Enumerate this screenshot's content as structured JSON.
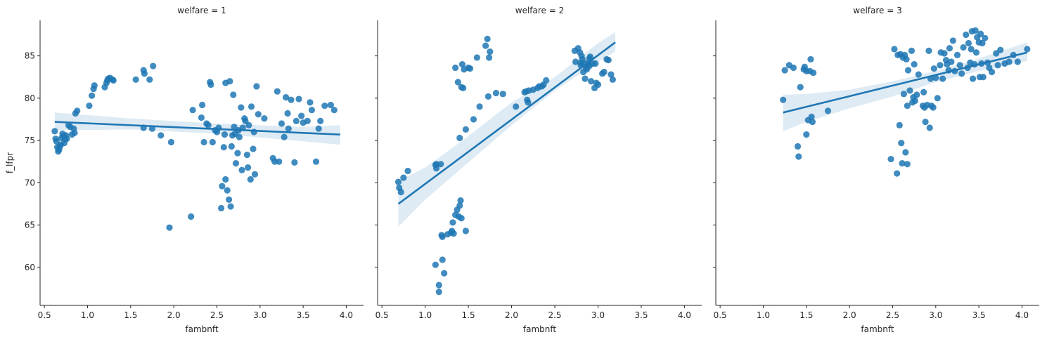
{
  "chart_data": [
    {
      "type": "scatter",
      "title": "welfare = 1",
      "xlabel": "fambnft",
      "ylabel": "f_lfpr",
      "xlim": [
        0.45,
        4.2
      ],
      "ylim": [
        55.5,
        89.2
      ],
      "xticks": [
        "0.5",
        "1.0",
        "1.5",
        "2.0",
        "2.5",
        "3.0",
        "3.5",
        "4.0"
      ],
      "yticks": [
        "60",
        "65",
        "70",
        "75",
        "80",
        "85"
      ],
      "grid": false,
      "color": "#1f77b4",
      "regression": {
        "x": [
          0.62,
          3.93
        ],
        "y": [
          77.2,
          75.7
        ]
      },
      "ci_band": {
        "x": [
          0.62,
          1.5,
          2.5,
          3.5,
          3.93
        ],
        "lower": [
          76.2,
          76.3,
          75.8,
          74.9,
          74.5
        ],
        "upper": [
          78.3,
          77.6,
          77.0,
          76.6,
          76.8
        ]
      },
      "points": [
        [
          0.62,
          76.1
        ],
        [
          0.63,
          75.2
        ],
        [
          0.64,
          74.9
        ],
        [
          0.65,
          74.2
        ],
        [
          0.66,
          73.7
        ],
        [
          0.67,
          73.9
        ],
        [
          0.68,
          74.3
        ],
        [
          0.69,
          74.5
        ],
        [
          0.7,
          75.3
        ],
        [
          0.71,
          75.8
        ],
        [
          0.72,
          75.5
        ],
        [
          0.73,
          74.7
        ],
        [
          0.74,
          75.1
        ],
        [
          0.75,
          75.6
        ],
        [
          0.76,
          75.2
        ],
        [
          0.78,
          76.8
        ],
        [
          0.8,
          76.6
        ],
        [
          0.82,
          75.7
        ],
        [
          0.84,
          76.4
        ],
        [
          0.85,
          75.9
        ],
        [
          0.86,
          78.2
        ],
        [
          0.88,
          78.5
        ],
        [
          1.02,
          79.1
        ],
        [
          1.05,
          80.3
        ],
        [
          1.07,
          81.1
        ],
        [
          1.08,
          81.5
        ],
        [
          1.2,
          81.3
        ],
        [
          1.22,
          81.8
        ],
        [
          1.23,
          82.1
        ],
        [
          1.24,
          82.3
        ],
        [
          1.26,
          82.4
        ],
        [
          1.29,
          82.2
        ],
        [
          1.3,
          82.1
        ],
        [
          1.56,
          82.2
        ],
        [
          1.65,
          83.3
        ],
        [
          1.66,
          82.9
        ],
        [
          1.72,
          82.2
        ],
        [
          1.76,
          83.8
        ],
        [
          1.65,
          76.5
        ],
        [
          1.75,
          76.4
        ],
        [
          1.85,
          75.6
        ],
        [
          1.95,
          64.7
        ],
        [
          1.97,
          74.8
        ],
        [
          2.2,
          66.0
        ],
        [
          2.22,
          78.6
        ],
        [
          2.32,
          77.7
        ],
        [
          2.33,
          79.2
        ],
        [
          2.35,
          74.8
        ],
        [
          2.38,
          77.0
        ],
        [
          2.4,
          76.8
        ],
        [
          2.42,
          81.9
        ],
        [
          2.43,
          81.6
        ],
        [
          2.45,
          74.8
        ],
        [
          2.48,
          76.2
        ],
        [
          2.5,
          76.0
        ],
        [
          2.52,
          76.5
        ],
        [
          2.55,
          67.0
        ],
        [
          2.56,
          69.6
        ],
        [
          2.58,
          74.2
        ],
        [
          2.59,
          75.7
        ],
        [
          2.6,
          70.4
        ],
        [
          2.6,
          81.8
        ],
        [
          2.62,
          69.1
        ],
        [
          2.64,
          68.0
        ],
        [
          2.65,
          82.0
        ],
        [
          2.66,
          67.2
        ],
        [
          2.67,
          74.3
        ],
        [
          2.68,
          75.6
        ],
        [
          2.69,
          80.4
        ],
        [
          2.7,
          76.6
        ],
        [
          2.71,
          75.8
        ],
        [
          2.72,
          72.3
        ],
        [
          2.74,
          73.5
        ],
        [
          2.75,
          76.2
        ],
        [
          2.76,
          75.4
        ],
        [
          2.78,
          78.9
        ],
        [
          2.79,
          71.5
        ],
        [
          2.8,
          76.5
        ],
        [
          2.82,
          77.6
        ],
        [
          2.83,
          77.3
        ],
        [
          2.85,
          73.3
        ],
        [
          2.86,
          71.8
        ],
        [
          2.87,
          76.8
        ],
        [
          2.89,
          70.4
        ],
        [
          2.9,
          79.0
        ],
        [
          2.92,
          74.0
        ],
        [
          2.93,
          76.0
        ],
        [
          2.94,
          71.0
        ],
        [
          2.96,
          81.4
        ],
        [
          2.98,
          78.1
        ],
        [
          3.05,
          77.6
        ],
        [
          3.15,
          72.9
        ],
        [
          3.17,
          72.5
        ],
        [
          3.2,
          80.8
        ],
        [
          3.22,
          72.5
        ],
        [
          3.25,
          77.0
        ],
        [
          3.28,
          75.4
        ],
        [
          3.3,
          80.1
        ],
        [
          3.32,
          78.2
        ],
        [
          3.33,
          76.4
        ],
        [
          3.36,
          79.8
        ],
        [
          3.4,
          72.4
        ],
        [
          3.42,
          77.3
        ],
        [
          3.45,
          79.9
        ],
        [
          3.48,
          77.9
        ],
        [
          3.5,
          77.1
        ],
        [
          3.55,
          77.3
        ],
        [
          3.58,
          79.5
        ],
        [
          3.6,
          78.6
        ],
        [
          3.65,
          72.5
        ],
        [
          3.68,
          76.4
        ],
        [
          3.7,
          77.3
        ],
        [
          3.75,
          79.1
        ],
        [
          3.82,
          79.2
        ],
        [
          3.86,
          78.6
        ]
      ]
    },
    {
      "type": "scatter",
      "title": "welfare = 2",
      "xlabel": "fambnft",
      "ylabel": "",
      "xlim": [
        0.45,
        4.2
      ],
      "ylim": [
        55.5,
        89.2
      ],
      "xticks": [
        "0.5",
        "1.0",
        "1.5",
        "2.0",
        "2.5",
        "3.0",
        "3.5",
        "4.0"
      ],
      "yticks": [
        "60",
        "65",
        "70",
        "75",
        "80",
        "85"
      ],
      "grid": false,
      "color": "#1f77b4",
      "regression": {
        "x": [
          0.69,
          3.2
        ],
        "y": [
          67.5,
          86.6
        ]
      },
      "ci_band": {
        "x": [
          0.69,
          1.0,
          1.5,
          2.0,
          2.5,
          3.0,
          3.2
        ],
        "lower": [
          64.8,
          68.0,
          72.4,
          76.8,
          80.9,
          84.3,
          85.5
        ],
        "upper": [
          70.2,
          71.8,
          75.5,
          79.5,
          82.5,
          86.5,
          87.8
        ]
      },
      "points": [
        [
          0.69,
          70.1
        ],
        [
          0.7,
          69.4
        ],
        [
          0.72,
          68.9
        ],
        [
          0.75,
          70.6
        ],
        [
          0.8,
          71.4
        ],
        [
          1.12,
          72.1
        ],
        [
          1.13,
          72.2
        ],
        [
          1.13,
          71.7
        ],
        [
          1.18,
          72.2
        ],
        [
          1.12,
          60.3
        ],
        [
          1.16,
          57.9
        ],
        [
          1.16,
          57.1
        ],
        [
          1.19,
          63.8
        ],
        [
          1.2,
          63.6
        ],
        [
          1.2,
          60.9
        ],
        [
          1.22,
          59.3
        ],
        [
          1.26,
          63.9
        ],
        [
          1.3,
          64.1
        ],
        [
          1.31,
          64.3
        ],
        [
          1.32,
          65.3
        ],
        [
          1.33,
          64.0
        ],
        [
          1.35,
          66.2
        ],
        [
          1.37,
          66.8
        ],
        [
          1.39,
          66.0
        ],
        [
          1.4,
          67.3
        ],
        [
          1.41,
          67.9
        ],
        [
          1.42,
          65.8
        ],
        [
          1.47,
          64.3
        ],
        [
          1.35,
          83.6
        ],
        [
          1.38,
          81.9
        ],
        [
          1.4,
          75.3
        ],
        [
          1.42,
          81.3
        ],
        [
          1.43,
          84.0
        ],
        [
          1.44,
          81.2
        ],
        [
          1.45,
          83.4
        ],
        [
          1.47,
          76.3
        ],
        [
          1.5,
          83.6
        ],
        [
          1.52,
          83.5
        ],
        [
          1.56,
          77.5
        ],
        [
          1.6,
          84.8
        ],
        [
          1.63,
          79.0
        ],
        [
          1.7,
          86.2
        ],
        [
          1.72,
          87.0
        ],
        [
          1.73,
          80.2
        ],
        [
          1.74,
          84.8
        ],
        [
          1.75,
          85.5
        ],
        [
          1.82,
          80.6
        ],
        [
          1.9,
          80.5
        ],
        [
          2.05,
          79.0
        ],
        [
          2.15,
          80.7
        ],
        [
          2.17,
          80.8
        ],
        [
          2.18,
          79.8
        ],
        [
          2.19,
          79.5
        ],
        [
          2.2,
          80.9
        ],
        [
          2.25,
          81.0
        ],
        [
          2.3,
          81.2
        ],
        [
          2.32,
          81.4
        ],
        [
          2.35,
          81.4
        ],
        [
          2.37,
          81.6
        ],
        [
          2.4,
          82.1
        ],
        [
          2.73,
          85.6
        ],
        [
          2.74,
          84.3
        ],
        [
          2.77,
          85.9
        ],
        [
          2.79,
          85.4
        ],
        [
          2.8,
          84.2
        ],
        [
          2.8,
          83.9
        ],
        [
          2.81,
          85.0
        ],
        [
          2.82,
          84.6
        ],
        [
          2.83,
          83.1
        ],
        [
          2.84,
          84.1
        ],
        [
          2.85,
          82.3
        ],
        [
          2.86,
          83.6
        ],
        [
          2.87,
          83.4
        ],
        [
          2.88,
          83.9
        ],
        [
          2.89,
          84.2
        ],
        [
          2.9,
          83.8
        ],
        [
          2.9,
          84.7
        ],
        [
          2.91,
          84.9
        ],
        [
          2.92,
          82.0
        ],
        [
          2.94,
          84.1
        ],
        [
          2.96,
          81.2
        ],
        [
          2.97,
          84.1
        ],
        [
          2.98,
          81.8
        ],
        [
          3.0,
          81.6
        ],
        [
          3.05,
          82.9
        ],
        [
          3.07,
          83.1
        ],
        [
          3.1,
          84.6
        ],
        [
          3.12,
          84.5
        ],
        [
          3.15,
          82.8
        ],
        [
          3.17,
          82.2
        ]
      ]
    },
    {
      "type": "scatter",
      "title": "welfare = 3",
      "xlabel": "fambnft",
      "ylabel": "",
      "xlim": [
        0.45,
        4.2
      ],
      "ylim": [
        55.5,
        89.2
      ],
      "xticks": [
        "0.5",
        "1.0",
        "1.5",
        "2.0",
        "2.5",
        "3.0",
        "3.5",
        "4.0"
      ],
      "yticks": [
        "60",
        "65",
        "70",
        "75",
        "80",
        "85"
      ],
      "grid": false,
      "color": "#1f77b4",
      "regression": {
        "x": [
          1.23,
          4.06
        ],
        "y": [
          78.3,
          85.4
        ]
      },
      "ci_band": {
        "x": [
          1.23,
          1.5,
          2.0,
          2.5,
          3.0,
          3.5,
          4.06
        ],
        "lower": [
          76.1,
          77.2,
          78.8,
          80.2,
          81.9,
          83.2,
          84.4
        ],
        "upper": [
          80.4,
          80.5,
          81.0,
          82.0,
          83.2,
          84.7,
          86.6
        ]
      },
      "points": [
        [
          1.23,
          79.8
        ],
        [
          1.25,
          83.3
        ],
        [
          1.3,
          83.9
        ],
        [
          1.35,
          83.6
        ],
        [
          1.4,
          74.3
        ],
        [
          1.41,
          73.1
        ],
        [
          1.43,
          81.3
        ],
        [
          1.47,
          83.4
        ],
        [
          1.48,
          83.7
        ],
        [
          1.5,
          83.2
        ],
        [
          1.5,
          75.7
        ],
        [
          1.52,
          77.4
        ],
        [
          1.54,
          83.2
        ],
        [
          1.55,
          84.6
        ],
        [
          1.56,
          77.8
        ],
        [
          1.57,
          77.2
        ],
        [
          1.58,
          83.0
        ],
        [
          1.75,
          78.5
        ],
        [
          2.48,
          72.8
        ],
        [
          2.52,
          85.8
        ],
        [
          2.55,
          71.1
        ],
        [
          2.56,
          85.1
        ],
        [
          2.58,
          76.8
        ],
        [
          2.59,
          85.2
        ],
        [
          2.6,
          74.7
        ],
        [
          2.61,
          72.3
        ],
        [
          2.62,
          84.8
        ],
        [
          2.63,
          80.5
        ],
        [
          2.64,
          85.1
        ],
        [
          2.65,
          73.6
        ],
        [
          2.66,
          84.6
        ],
        [
          2.67,
          72.2
        ],
        [
          2.67,
          79.1
        ],
        [
          2.68,
          83.3
        ],
        [
          2.7,
          80.9
        ],
        [
          2.72,
          85.6
        ],
        [
          2.73,
          79.5
        ],
        [
          2.74,
          80.1
        ],
        [
          2.75,
          84.0
        ],
        [
          2.76,
          79.7
        ],
        [
          2.78,
          80.4
        ],
        [
          2.8,
          82.8
        ],
        [
          2.85,
          79.1
        ],
        [
          2.86,
          80.7
        ],
        [
          2.87,
          78.9
        ],
        [
          2.88,
          77.2
        ],
        [
          2.9,
          79.2
        ],
        [
          2.92,
          85.6
        ],
        [
          2.93,
          76.5
        ],
        [
          2.94,
          82.3
        ],
        [
          2.95,
          79.1
        ],
        [
          2.97,
          78.9
        ],
        [
          2.98,
          83.5
        ],
        [
          3.0,
          82.4
        ],
        [
          3.02,
          80.0
        ],
        [
          3.05,
          83.9
        ],
        [
          3.06,
          85.4
        ],
        [
          3.08,
          82.3
        ],
        [
          3.1,
          85.3
        ],
        [
          3.12,
          84.5
        ],
        [
          3.13,
          84.0
        ],
        [
          3.15,
          83.3
        ],
        [
          3.16,
          85.9
        ],
        [
          3.18,
          84.3
        ],
        [
          3.2,
          86.8
        ],
        [
          3.22,
          83.2
        ],
        [
          3.25,
          85.1
        ],
        [
          3.28,
          83.9
        ],
        [
          3.3,
          82.9
        ],
        [
          3.32,
          86.0
        ],
        [
          3.35,
          87.5
        ],
        [
          3.37,
          83.6
        ],
        [
          3.38,
          86.5
        ],
        [
          3.4,
          84.2
        ],
        [
          3.41,
          85.8
        ],
        [
          3.42,
          87.9
        ],
        [
          3.43,
          82.3
        ],
        [
          3.45,
          84.0
        ],
        [
          3.46,
          88.0
        ],
        [
          3.47,
          85.4
        ],
        [
          3.48,
          87.2
        ],
        [
          3.5,
          86.6
        ],
        [
          3.51,
          82.5
        ],
        [
          3.52,
          87.6
        ],
        [
          3.53,
          84.1
        ],
        [
          3.54,
          86.5
        ],
        [
          3.55,
          82.5
        ],
        [
          3.57,
          87.1
        ],
        [
          3.6,
          84.2
        ],
        [
          3.62,
          83.6
        ],
        [
          3.65,
          83.1
        ],
        [
          3.7,
          85.3
        ],
        [
          3.72,
          83.9
        ],
        [
          3.75,
          85.7
        ],
        [
          3.8,
          84.1
        ],
        [
          3.85,
          84.3
        ],
        [
          3.9,
          85.1
        ],
        [
          3.95,
          84.3
        ],
        [
          4.06,
          85.8
        ]
      ]
    }
  ]
}
